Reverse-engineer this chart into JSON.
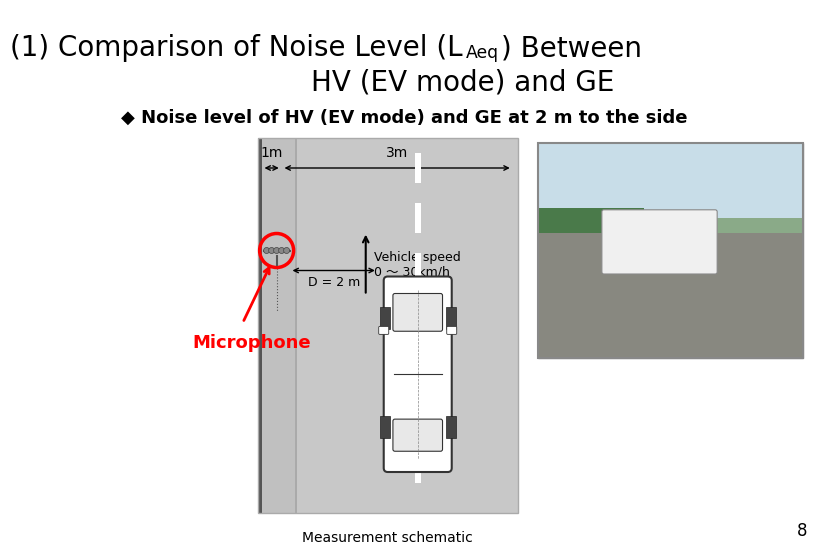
{
  "title_line1": "(1) Comparison of Noise Level (L",
  "title_sub": "Aeq",
  "title_line1_after": ") Between",
  "title_line2": "HV (EV mode) and GE",
  "bullet_text": "◆ Noise level of HV (EV mode) and GE at 2 m to the side",
  "schematic_label": "Measurement schematic",
  "microphone_label": "Microphone",
  "dim_1m": "1m",
  "dim_3m": "3m",
  "dim_D": "D = 2 m",
  "vehicle_speed_line1": "Vehicle speed",
  "vehicle_speed_line2": "0 ～ 30km/h",
  "bg_color": "#ffffff",
  "road_color": "#c8c8c8",
  "sidewalk_color": "#b8b8b8",
  "page_number": "8",
  "title_fontsize": 20,
  "bullet_fontsize": 13,
  "label_fontsize": 11
}
